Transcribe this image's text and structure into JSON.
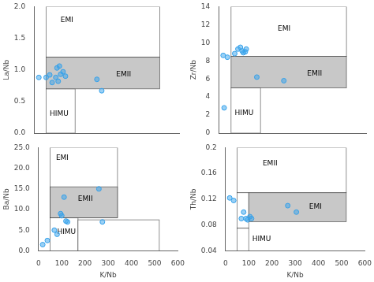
{
  "chart_data": [
    {
      "type": "scatter",
      "ylabel": "La/Nb",
      "x": [
        20,
        50,
        65,
        75,
        90,
        95,
        100,
        105,
        110,
        120,
        130,
        260,
        280
      ],
      "y": [
        0.88,
        0.88,
        0.92,
        0.8,
        0.88,
        1.03,
        0.82,
        1.06,
        0.93,
        0.97,
        0.9,
        0.85,
        0.67
      ],
      "xlim": [
        0,
        600
      ],
      "xticks": [
        0,
        100,
        200,
        300,
        400,
        500,
        600
      ],
      "ylim": [
        0.0,
        2.0
      ],
      "yticks": [
        {
          "value": 0.0,
          "label": "0.0"
        },
        {
          "value": 0.5,
          "label": "0.5"
        },
        {
          "value": 1.0,
          "label": "1.0"
        },
        {
          "value": 1.5,
          "label": "1.5"
        },
        {
          "value": 2.0,
          "label": "2.0"
        }
      ],
      "tick_labels": "y",
      "grid": false,
      "boxes": [
        {
          "x0": 50,
          "x1": 520,
          "y0": 1.2,
          "y1": 2.0,
          "color": "white",
          "label": "EMI",
          "label_x": 110,
          "label_y": 1.78
        },
        {
          "x0": 50,
          "x1": 170,
          "y0": 0.0,
          "y1": 0.7,
          "color": "white",
          "label": "HIMU",
          "label_x": 65,
          "label_y": 0.3
        },
        {
          "x0": 50,
          "x1": 520,
          "y0": 0.7,
          "y1": 1.2,
          "color": "#c8c8c8",
          "label": "EMII",
          "label_x": 340,
          "label_y": 0.93
        }
      ]
    },
    {
      "type": "scatter",
      "ylabel": "Zr/Nb",
      "x": [
        18,
        35,
        65,
        78,
        88,
        95,
        100,
        108,
        112,
        155,
        265,
        22
      ],
      "y": [
        8.6,
        8.4,
        8.8,
        9.3,
        9.5,
        9.1,
        8.9,
        9.0,
        9.3,
        6.2,
        5.8,
        2.8
      ],
      "xlim": [
        0,
        600
      ],
      "xticks": [
        0,
        100,
        200,
        300,
        400,
        500,
        600
      ],
      "ylim": [
        0,
        14
      ],
      "yticks": [
        0,
        2,
        4,
        6,
        8,
        10,
        12,
        14
      ],
      "tick_labels": "y",
      "grid": false,
      "boxes": [
        {
          "x0": 50,
          "x1": 520,
          "y0": 8.5,
          "y1": 14.0,
          "color": "white",
          "label": "EMI",
          "label_x": 240,
          "label_y": 11.5
        },
        {
          "x0": 50,
          "x1": 170,
          "y0": 0.0,
          "y1": 5.0,
          "color": "white",
          "label": "HIMU",
          "label_x": 65,
          "label_y": 2.2
        },
        {
          "x0": 50,
          "x1": 520,
          "y0": 5.0,
          "y1": 8.5,
          "color": "#c8c8c8",
          "label": "EMII",
          "label_x": 360,
          "label_y": 6.6
        }
      ]
    },
    {
      "type": "scatter",
      "ylabel": "Ba/Nb",
      "xlabel": "K/Nb",
      "x": [
        18,
        38,
        68,
        80,
        95,
        100,
        110,
        118,
        125,
        260,
        275
      ],
      "y": [
        1.5,
        2.5,
        5.0,
        4.0,
        9.0,
        8.5,
        13.0,
        7.2,
        7.0,
        15.0,
        7.0
      ],
      "xlim": [
        0,
        600
      ],
      "xticks": [
        0,
        100,
        200,
        300,
        400,
        500,
        600
      ],
      "ylim": [
        0.0,
        25.0
      ],
      "yticks": [
        {
          "value": 0.0,
          "label": "0.0"
        },
        {
          "value": 5.0,
          "label": "5.0"
        },
        {
          "value": 10.0,
          "label": "10.0"
        },
        {
          "value": 15.0,
          "label": "15.0"
        },
        {
          "value": 20.0,
          "label": "20.0"
        },
        {
          "value": 25.0,
          "label": "25.0"
        }
      ],
      "grid": false,
      "boxes": [
        {
          "x0": 50,
          "x1": 340,
          "y0": 8.0,
          "y1": 25.0,
          "color": "white",
          "label": "EMI",
          "label_x": 75,
          "label_y": 22.5
        },
        {
          "x0": 50,
          "x1": 170,
          "y0": 0.0,
          "y1": 8.0,
          "color": "white",
          "label": "HIMU",
          "label_x": 80,
          "label_y": 4.5
        },
        {
          "x0": 170,
          "x1": 520,
          "y0": 0.0,
          "y1": 7.5,
          "color": "white"
        },
        {
          "x0": 50,
          "x1": 340,
          "y0": 8.0,
          "y1": 15.5,
          "color": "#c8c8c8",
          "label": "EMII",
          "label_x": 170,
          "label_y": 12.5
        }
      ]
    },
    {
      "type": "scatter",
      "ylabel": "Th/Nb",
      "xlabel": "K/Nb",
      "x": [
        18,
        35,
        68,
        78,
        88,
        95,
        105,
        112,
        268,
        305
      ],
      "y": [
        0.122,
        0.118,
        0.09,
        0.1,
        0.09,
        0.088,
        0.093,
        0.09,
        0.11,
        0.1
      ],
      "xlim": [
        0,
        600
      ],
      "xticks": [
        0,
        100,
        200,
        300,
        400,
        500,
        600
      ],
      "ylim": [
        0.04,
        0.2
      ],
      "yticks": [
        0.04,
        0.08,
        0.12,
        0.16,
        0.2
      ],
      "grid": false,
      "boxes": [
        {
          "x0": 50,
          "x1": 520,
          "y0": 0.13,
          "y1": 0.2,
          "color": "white",
          "label": "EMII",
          "label_x": 160,
          "label_y": 0.175
        },
        {
          "x0": 50,
          "x1": 100,
          "y0": 0.075,
          "y1": 0.13,
          "color": "white"
        },
        {
          "x0": 50,
          "x1": 100,
          "y0": 0.04,
          "y1": 0.075,
          "color": "white",
          "label": "HIMU",
          "label_x": 115,
          "label_y": 0.058
        },
        {
          "x0": 100,
          "x1": 520,
          "y0": 0.085,
          "y1": 0.13,
          "color": "#c8c8c8",
          "label": "EMI",
          "label_x": 360,
          "label_y": 0.108
        }
      ]
    }
  ]
}
